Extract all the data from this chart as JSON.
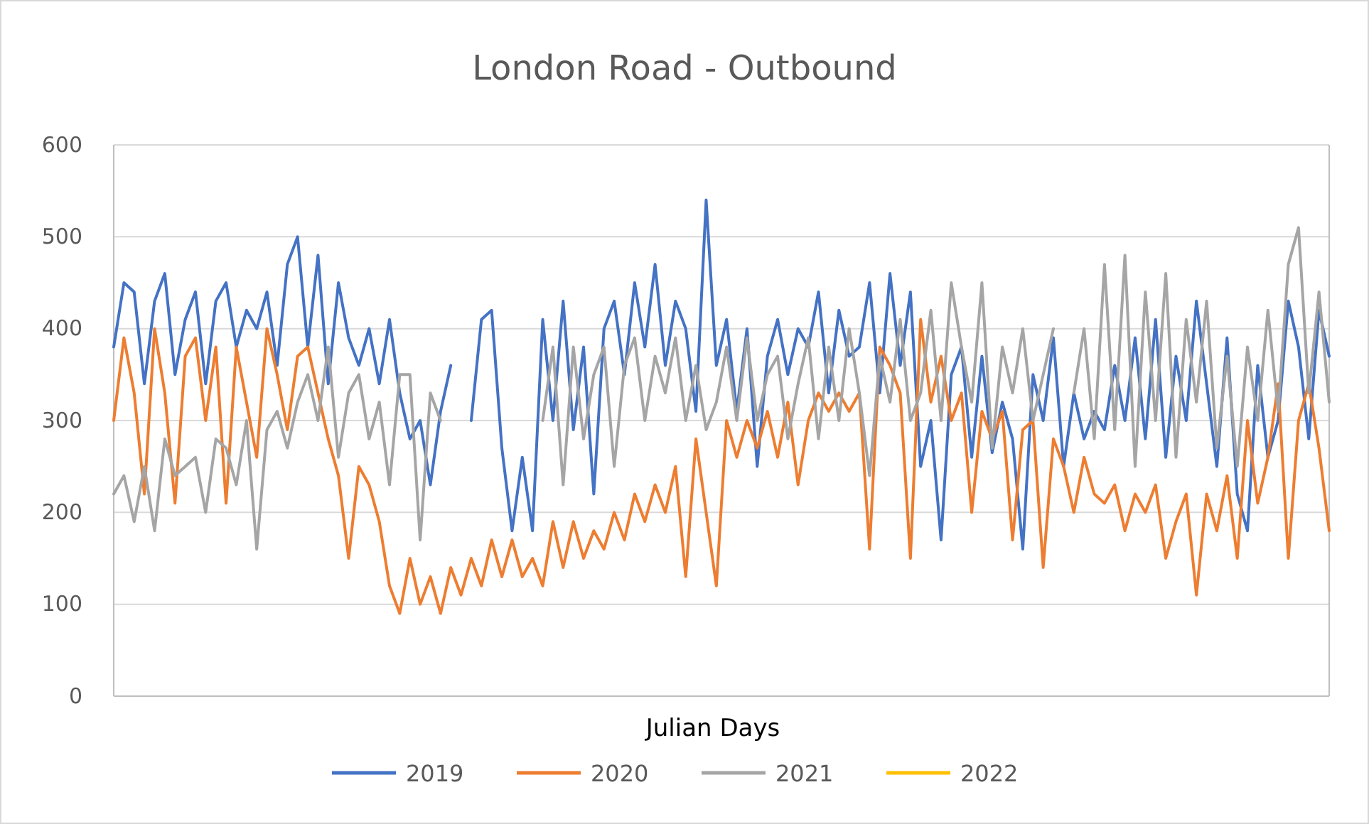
{
  "chart_data": {
    "type": "line",
    "title": "London Road - Outbound",
    "xlabel": "Julian Days",
    "categories": [
      null,
      null,
      null,
      null,
      null,
      null,
      null,
      null,
      null,
      null,
      null,
      null,
      null,
      null,
      null,
      null,
      null,
      null,
      null,
      null,
      null,
      null,
      null,
      null,
      null,
      null,
      null,
      null,
      null,
      null,
      null,
      null,
      null,
      null,
      null,
      null,
      null,
      null,
      null,
      null,
      null,
      null,
      null,
      null,
      null,
      null,
      null,
      null,
      null,
      null,
      null,
      null,
      null,
      null,
      null,
      null,
      null,
      null,
      null,
      null,
      null,
      null,
      null,
      null,
      null,
      null,
      null,
      null,
      null,
      null,
      null,
      null,
      null,
      null,
      null,
      null,
      null,
      null,
      null,
      null,
      null,
      null,
      null,
      null,
      null,
      null,
      null,
      null,
      null,
      null,
      null,
      null,
      null,
      null,
      null,
      null,
      null,
      null,
      null,
      null,
      null,
      null,
      null,
      null,
      null,
      null,
      null,
      null,
      null,
      null,
      null,
      null,
      null,
      null,
      null,
      null,
      null,
      null,
      null,
      null
    ],
    "series": [
      {
        "name": "2019",
        "color": "#4472c4",
        "values": [
          380,
          450,
          440,
          340,
          430,
          460,
          350,
          410,
          440,
          340,
          430,
          450,
          380,
          420,
          400,
          440,
          360,
          470,
          500,
          380,
          480,
          340,
          450,
          390,
          360,
          400,
          340,
          410,
          330,
          280,
          300,
          230,
          310,
          360,
          null,
          300,
          410,
          420,
          270,
          180,
          260,
          180,
          410,
          300,
          430,
          290,
          380,
          220,
          400,
          430,
          350,
          450,
          380,
          470,
          360,
          430,
          400,
          310,
          540,
          360,
          410,
          310,
          400,
          250,
          370,
          410,
          350,
          400,
          380,
          440,
          330,
          420,
          370,
          380,
          450,
          330,
          460,
          360,
          440,
          250,
          300,
          170,
          350,
          380,
          260,
          370,
          265,
          320,
          280,
          160,
          350,
          300,
          390,
          250,
          330,
          280,
          310,
          290,
          360,
          300,
          390,
          280,
          410,
          260,
          370,
          300,
          430,
          340,
          250,
          390,
          220,
          180,
          360,
          260,
          300,
          430,
          380,
          280,
          420,
          370
        ]
      },
      {
        "name": "2020",
        "color": "#ed7d31",
        "values": [
          300,
          390,
          330,
          220,
          400,
          330,
          210,
          370,
          390,
          300,
          380,
          210,
          380,
          320,
          260,
          400,
          350,
          290,
          370,
          380,
          330,
          280,
          240,
          150,
          250,
          230,
          190,
          120,
          90,
          150,
          100,
          130,
          90,
          140,
          110,
          150,
          120,
          170,
          130,
          170,
          130,
          150,
          120,
          190,
          140,
          190,
          150,
          180,
          160,
          200,
          170,
          220,
          190,
          230,
          200,
          250,
          130,
          280,
          200,
          120,
          300,
          260,
          300,
          270,
          310,
          260,
          320,
          230,
          300,
          330,
          310,
          330,
          310,
          330,
          160,
          380,
          360,
          330,
          150,
          410,
          320,
          370,
          300,
          330,
          200,
          310,
          280,
          310,
          170,
          290,
          300,
          140,
          280,
          250,
          200,
          260,
          220,
          210,
          230,
          180,
          220,
          200,
          230,
          150,
          190,
          220,
          110,
          220,
          180,
          240,
          150,
          300,
          210,
          260,
          340,
          150,
          300,
          340,
          270,
          180
        ]
      },
      {
        "name": "2021",
        "color": "#a5a5a5",
        "values": [
          220,
          240,
          190,
          250,
          180,
          280,
          240,
          250,
          260,
          200,
          280,
          270,
          230,
          300,
          160,
          290,
          310,
          270,
          320,
          350,
          300,
          380,
          260,
          330,
          350,
          280,
          320,
          230,
          350,
          350,
          170,
          330,
          300,
          null,
          null,
          null,
          null,
          null,
          null,
          null,
          null,
          null,
          300,
          380,
          230,
          380,
          280,
          350,
          380,
          250,
          360,
          390,
          300,
          370,
          330,
          390,
          300,
          360,
          290,
          320,
          380,
          300,
          390,
          300,
          350,
          370,
          280,
          340,
          390,
          280,
          380,
          300,
          400,
          330,
          240,
          370,
          320,
          410,
          300,
          330,
          420,
          300,
          450,
          380,
          320,
          450,
          270,
          380,
          330,
          400,
          300,
          350,
          400,
          null,
          330,
          400,
          280,
          470,
          290,
          480,
          250,
          440,
          300,
          460,
          260,
          410,
          320,
          430,
          270,
          370,
          250,
          380,
          300,
          420,
          310,
          470,
          510,
          330,
          440,
          320
        ]
      },
      {
        "name": "2022",
        "color": "#ffc000",
        "values": [
          null,
          null,
          null,
          null,
          null,
          null,
          null,
          null,
          null,
          null,
          null,
          null,
          null,
          null,
          null,
          null,
          null,
          null,
          null,
          null,
          null,
          null,
          null,
          null,
          null,
          null,
          null,
          null,
          null,
          null,
          null,
          null,
          null,
          null,
          null,
          null,
          null,
          null,
          null,
          null,
          null,
          null,
          null,
          null,
          null,
          null,
          null,
          null,
          null,
          null,
          null,
          null,
          null,
          null,
          null,
          null,
          null,
          null,
          null,
          null,
          null,
          null,
          null,
          null,
          null,
          null,
          null,
          null,
          null,
          null,
          null,
          null,
          null,
          null,
          null,
          null,
          null,
          null,
          null,
          null,
          null,
          null,
          null,
          null,
          null,
          null,
          null,
          null,
          null,
          null,
          null,
          null,
          null,
          null,
          null,
          null,
          null,
          null,
          null,
          null,
          null,
          null,
          null,
          null,
          null,
          null,
          null,
          null,
          null,
          null,
          null,
          null,
          null,
          null,
          null,
          null,
          null,
          null,
          null,
          null
        ]
      }
    ],
    "ylim": [
      0,
      600
    ],
    "yticks": [
      0,
      100,
      200,
      300,
      400,
      500,
      600
    ],
    "grid": "y",
    "legend": "bottom",
    "tick_labels": "y",
    "line_style": "solid",
    "marker": "none"
  }
}
